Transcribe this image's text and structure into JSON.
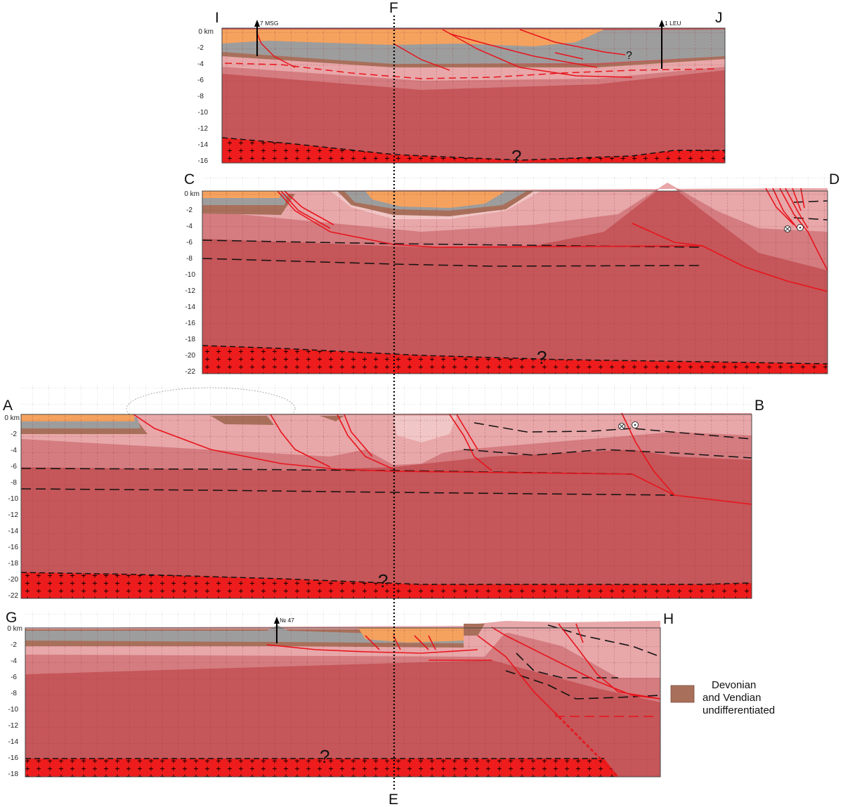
{
  "colors": {
    "deep": "#c55659",
    "mid": "#d47c80",
    "light": "#e8a7a9",
    "pale": "#f1c6c6",
    "devonian": "#a8705b",
    "grey": "#9d9d9d",
    "orange": "#f5a25e",
    "basement": "#ee1c1c",
    "fault": "#e8141c"
  },
  "labels": {
    "I": "I",
    "J": "J",
    "C": "C",
    "D": "D",
    "A": "A",
    "B": "B",
    "G": "G",
    "H": "H",
    "F": "F",
    "E": "E"
  },
  "sections": {
    "IJ": {
      "depth_ticks": [
        "0 km",
        "-2",
        "-4",
        "-6",
        "-8",
        "-10",
        "-12",
        "-14",
        "-16"
      ],
      "wells": [
        "7 MSG",
        "1 LEU"
      ],
      "question": "?",
      "question_small": "?"
    },
    "CD": {
      "depth_ticks": [
        "0 km",
        "-2",
        "-4",
        "-6",
        "-8",
        "-10",
        "-12",
        "-14",
        "-16",
        "-18",
        "-20",
        "-22"
      ],
      "question": "?"
    },
    "AB": {
      "depth_ticks": [
        "0 km",
        "-2",
        "-4",
        "-6",
        "-8",
        "-10",
        "-12",
        "-14",
        "-16",
        "-18",
        "-20",
        "-22"
      ],
      "question": "?"
    },
    "GH": {
      "depth_ticks": [
        "0 km",
        "-2",
        "-4",
        "-6",
        "-8",
        "-10",
        "-12",
        "-14",
        "-16",
        "-18"
      ],
      "wells": [
        "№ 47"
      ],
      "question": "?"
    }
  },
  "legend": {
    "line1": "Devonian",
    "line2": "and Vendian",
    "line3": "undifferentiated",
    "swatch_color": "#a8705b"
  }
}
